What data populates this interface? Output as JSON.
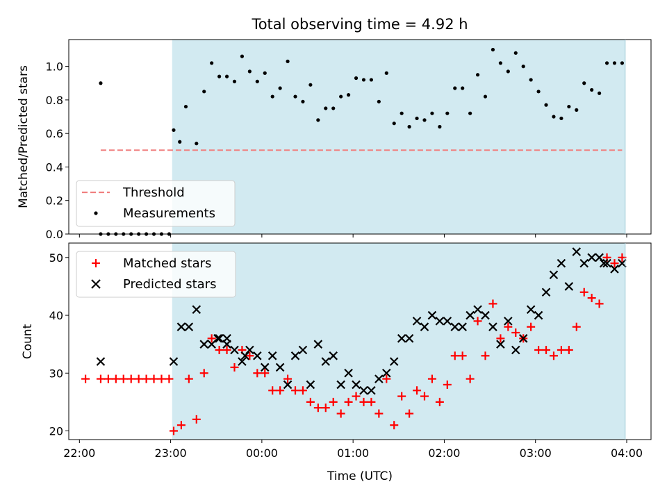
{
  "chart_data": [
    {
      "type": "scatter",
      "title": "Total observing time = 4.92 h",
      "xlabel": "",
      "ylabel": "Matched/Predicted stars",
      "xlim": [
        "21:53",
        "04:16"
      ],
      "ylim": [
        0,
        1.16
      ],
      "yticks": [
        "0.0",
        "0.2",
        "0.4",
        "0.6",
        "0.8",
        "1.0"
      ],
      "shaded_span": {
        "start": "23:01",
        "end": "03:59",
        "color": "#add8e6"
      },
      "legend_placement": "lower-left",
      "series": [
        {
          "name": "Threshold",
          "kind": "dashed-line",
          "color": "#f08080",
          "x": [
            "22:14",
            "03:57"
          ],
          "y": [
            0.5,
            0.5
          ]
        },
        {
          "name": "Measurements",
          "kind": "dot",
          "color": "#000000",
          "x": [
            "22:14",
            "22:19",
            "22:24",
            "22:29",
            "22:34",
            "22:39",
            "22:44",
            "22:49",
            "22:54",
            "22:59",
            "23:02",
            "23:06",
            "23:10",
            "23:17",
            "23:22",
            "23:27",
            "23:32",
            "23:37",
            "23:42",
            "23:47",
            "23:52",
            "23:57",
            "24:02",
            "24:07",
            "24:12",
            "24:17",
            "24:22",
            "24:27",
            "24:32",
            "24:37",
            "24:42",
            "24:47",
            "24:52",
            "24:57",
            "25:02",
            "25:07",
            "25:12",
            "25:17",
            "25:22",
            "25:27",
            "25:32",
            "25:37",
            "25:42",
            "25:47",
            "25:52",
            "25:57",
            "26:02",
            "26:07",
            "26:12",
            "26:17",
            "26:22",
            "26:27",
            "26:32",
            "26:37",
            "26:42",
            "26:47",
            "26:52",
            "26:57",
            "27:02",
            "27:07",
            "27:12",
            "27:17",
            "27:22",
            "27:27",
            "27:32",
            "27:37",
            "27:42",
            "27:47",
            "27:52",
            "27:57"
          ],
          "y": [
            0,
            0,
            0,
            0,
            0,
            0,
            0,
            0,
            0,
            0,
            0.62,
            0.55,
            0.76,
            0.54,
            0.85,
            1.02,
            0.94,
            0.94,
            0.91,
            1.06,
            0.97,
            0.91,
            0.96,
            0.82,
            0.87,
            1.03,
            0.82,
            0.79,
            0.89,
            0.68,
            0.75,
            0.75,
            0.82,
            0.83,
            0.93,
            0.92,
            0.92,
            0.79,
            0.96,
            0.66,
            0.72,
            0.64,
            0.69,
            0.68,
            0.72,
            0.64,
            0.72,
            0.87,
            0.87,
            0.72,
            0.95,
            0.82,
            1.1,
            1.02,
            0.97,
            1.08,
            1.0,
            0.92,
            0.85,
            0.77,
            0.7,
            0.69,
            0.76,
            0.74,
            0.9,
            0.86,
            0.84,
            1.02,
            1.02,
            1.02
          ]
        },
        {
          "name": "",
          "kind": "dot",
          "color": "#000000",
          "x": [
            "22:14"
          ],
          "y": [
            0.9
          ]
        }
      ]
    },
    {
      "type": "scatter",
      "title": "",
      "xlabel": "Time (UTC)",
      "ylabel": "Count",
      "xlim": [
        "21:53",
        "04:16"
      ],
      "ylim": [
        18.5,
        52.5
      ],
      "xticks": [
        "22:00",
        "23:00",
        "00:00",
        "01:00",
        "02:00",
        "03:00",
        "04:00"
      ],
      "yticks": [
        "20",
        "30",
        "40",
        "50"
      ],
      "shaded_span": {
        "start": "23:01",
        "end": "03:59",
        "color": "#add8e6"
      },
      "legend_placement": "upper-left",
      "series": [
        {
          "name": "Matched stars",
          "marker": "plus",
          "color": "#ff0000",
          "x": [
            "22:14",
            "22:19",
            "22:24",
            "22:29",
            "22:34",
            "22:39",
            "22:44",
            "22:49",
            "22:54",
            "22:59",
            "23:02",
            "23:07",
            "23:12",
            "23:17",
            "23:22",
            "23:27",
            "23:32",
            "23:37",
            "23:42",
            "23:47",
            "23:52",
            "23:57",
            "24:02",
            "24:07",
            "24:12",
            "24:17",
            "24:22",
            "24:27",
            "24:32",
            "24:37",
            "24:42",
            "24:47",
            "24:52",
            "24:57",
            "25:02",
            "25:07",
            "25:12",
            "25:17",
            "25:22",
            "25:27",
            "25:32",
            "25:37",
            "25:42",
            "25:47",
            "25:52",
            "25:57",
            "26:02",
            "26:07",
            "26:12",
            "26:17",
            "26:22",
            "26:27",
            "26:32",
            "26:37",
            "26:42",
            "26:47",
            "26:52",
            "26:57",
            "27:02",
            "27:07",
            "27:12",
            "27:17",
            "27:22",
            "27:27",
            "27:32",
            "27:37",
            "27:42",
            "27:47",
            "27:52",
            "27:57",
            "22:04"
          ],
          "y": [
            29,
            29,
            29,
            29,
            29,
            29,
            29,
            29,
            29,
            29,
            20,
            21,
            29,
            22,
            30,
            36,
            34,
            34,
            31,
            34,
            33,
            30,
            30,
            27,
            27,
            29,
            27,
            27,
            25,
            24,
            24,
            25,
            23,
            25,
            26,
            25,
            25,
            23,
            29,
            21,
            26,
            23,
            27,
            26,
            29,
            25,
            28,
            33,
            33,
            29,
            39,
            33,
            42,
            36,
            38,
            37,
            36,
            38,
            34,
            34,
            33,
            34,
            34,
            38,
            44,
            43,
            42,
            50,
            49,
            50,
            29
          ]
        },
        {
          "name": "Predicted stars",
          "marker": "x",
          "color": "#000000",
          "x": [
            "22:14",
            "23:02",
            "23:07",
            "23:12",
            "23:17",
            "23:22",
            "23:27",
            "23:32",
            "23:37",
            "23:42",
            "23:47",
            "23:52",
            "23:57",
            "24:02",
            "24:07",
            "24:12",
            "24:17",
            "24:22",
            "24:27",
            "24:32",
            "24:37",
            "24:42",
            "24:47",
            "24:52",
            "24:57",
            "25:02",
            "25:07",
            "25:12",
            "25:17",
            "25:22",
            "25:27",
            "25:32",
            "25:37",
            "25:42",
            "25:47",
            "25:52",
            "25:57",
            "26:02",
            "26:07",
            "26:12",
            "26:17",
            "26:22",
            "26:27",
            "26:32",
            "26:37",
            "26:42",
            "26:47",
            "26:52",
            "26:57",
            "27:02",
            "27:07",
            "27:12",
            "27:17",
            "27:22",
            "27:27",
            "27:32",
            "27:37",
            "27:42",
            "27:47",
            "27:52",
            "27:57",
            "23:31",
            "23:37",
            "23:49",
            "27:45"
          ],
          "y": [
            32,
            32,
            38,
            38,
            41,
            35,
            35,
            36,
            36,
            34,
            32,
            34,
            33,
            31,
            33,
            31,
            28,
            33,
            34,
            28,
            35,
            32,
            33,
            28,
            30,
            28,
            27,
            27,
            29,
            30,
            32,
            36,
            36,
            39,
            38,
            40,
            39,
            39,
            38,
            38,
            40,
            41,
            40,
            38,
            35,
            39,
            34,
            36,
            41,
            40,
            44,
            47,
            49,
            45,
            51,
            49,
            50,
            50,
            49,
            48,
            49,
            36,
            35,
            33,
            49
          ]
        }
      ]
    }
  ]
}
